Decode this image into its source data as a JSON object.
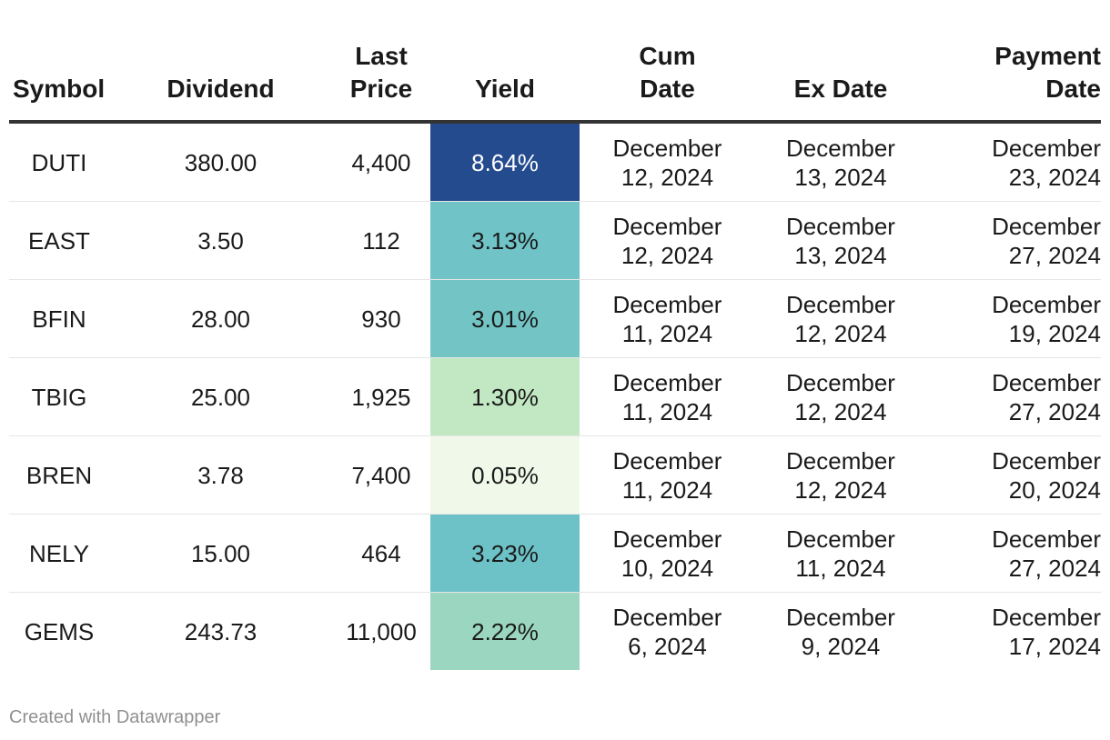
{
  "chart_data": {
    "type": "table",
    "columns": [
      "Symbol",
      "Dividend",
      "Last Price",
      "Yield",
      "Cum Date",
      "Ex Date",
      "Payment Date"
    ],
    "header_lines": [
      [
        "Symbol"
      ],
      [
        "Dividend"
      ],
      [
        "Last",
        "Price"
      ],
      [
        "Yield"
      ],
      [
        "Cum",
        "Date"
      ],
      [
        "Ex Date"
      ],
      [
        "Payment",
        "Date"
      ]
    ],
    "rows": [
      {
        "symbol": "DUTI",
        "dividend": "380.00",
        "last_price": "4,400",
        "yield": "8.64%",
        "yield_value": 8.64,
        "yield_color": "#254b8f",
        "yield_text_color": "#ffffff",
        "cum_date": [
          "December",
          "12, 2024"
        ],
        "ex_date": [
          "December",
          "13, 2024"
        ],
        "payment_date": [
          "December",
          "23, 2024"
        ]
      },
      {
        "symbol": "EAST",
        "dividend": "3.50",
        "last_price": "112",
        "yield": "3.13%",
        "yield_value": 3.13,
        "yield_color": "#70c3c6",
        "yield_text_color": "#1a1a1a",
        "cum_date": [
          "December",
          "12, 2024"
        ],
        "ex_date": [
          "December",
          "13, 2024"
        ],
        "payment_date": [
          "December",
          "27, 2024"
        ]
      },
      {
        "symbol": "BFIN",
        "dividend": "28.00",
        "last_price": "930",
        "yield": "3.01%",
        "yield_value": 3.01,
        "yield_color": "#73c5c5",
        "yield_text_color": "#1a1a1a",
        "cum_date": [
          "December",
          "11, 2024"
        ],
        "ex_date": [
          "December",
          "12, 2024"
        ],
        "payment_date": [
          "December",
          "19, 2024"
        ]
      },
      {
        "symbol": "TBIG",
        "dividend": "25.00",
        "last_price": "1,925",
        "yield": "1.30%",
        "yield_value": 1.3,
        "yield_color": "#c2e8c3",
        "yield_text_color": "#1a1a1a",
        "cum_date": [
          "December",
          "11, 2024"
        ],
        "ex_date": [
          "December",
          "12, 2024"
        ],
        "payment_date": [
          "December",
          "27, 2024"
        ]
      },
      {
        "symbol": "BREN",
        "dividend": "3.78",
        "last_price": "7,400",
        "yield": "0.05%",
        "yield_value": 0.05,
        "yield_color": "#f0f9e9",
        "yield_text_color": "#1a1a1a",
        "cum_date": [
          "December",
          "11, 2024"
        ],
        "ex_date": [
          "December",
          "12, 2024"
        ],
        "payment_date": [
          "December",
          "20, 2024"
        ]
      },
      {
        "symbol": "NELY",
        "dividend": "15.00",
        "last_price": "464",
        "yield": "3.23%",
        "yield_value": 3.23,
        "yield_color": "#6dc2c7",
        "yield_text_color": "#1a1a1a",
        "cum_date": [
          "December",
          "10, 2024"
        ],
        "ex_date": [
          "December",
          "11, 2024"
        ],
        "payment_date": [
          "December",
          "27, 2024"
        ]
      },
      {
        "symbol": "GEMS",
        "dividend": "243.73",
        "last_price": "11,000",
        "yield": "2.22%",
        "yield_value": 2.22,
        "yield_color": "#9bd7c0",
        "yield_text_color": "#1a1a1a",
        "cum_date": [
          "December",
          "6, 2024"
        ],
        "ex_date": [
          "December",
          "9, 2024"
        ],
        "payment_date": [
          "December",
          "17, 2024"
        ]
      }
    ]
  },
  "footer": {
    "credit": "Created with Datawrapper"
  }
}
